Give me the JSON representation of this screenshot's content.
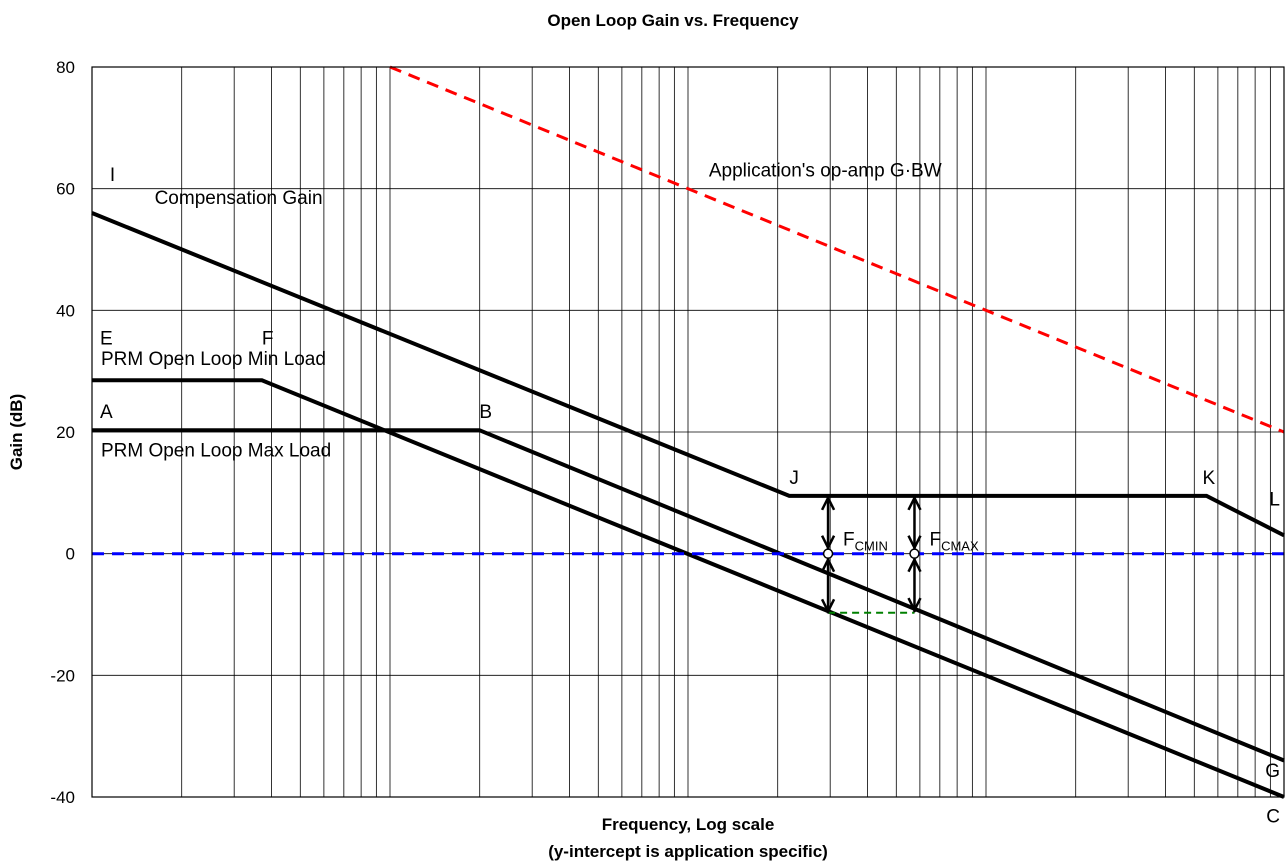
{
  "chart_data": {
    "type": "line",
    "title": "Open Loop Gain vs. Frequency",
    "xlabel": "Frequency, Log scale",
    "xlabel_note": "(y-intercept is application specific)",
    "ylabel": "Gain (dB)",
    "x_scale": "log",
    "x_decades": 4,
    "ylim": [
      -40,
      80
    ],
    "yticks": [
      -40,
      -20,
      0,
      20,
      40,
      60,
      80
    ],
    "grid": true,
    "series": [
      {
        "name": "Compensation Gain",
        "color": "#000000",
        "style": "solid",
        "points": [
          [
            0.0,
            56
          ],
          [
            2.34,
            9.5
          ],
          [
            3.74,
            9.5
          ],
          [
            4.0,
            3
          ]
        ]
      },
      {
        "name": "PRM Open Loop Min Load",
        "color": "#000000",
        "style": "solid",
        "points": [
          [
            0.0,
            28.5
          ],
          [
            0.57,
            28.5
          ],
          [
            4.0,
            -40
          ]
        ]
      },
      {
        "name": "PRM Open Loop Max Load",
        "color": "#000000",
        "style": "solid",
        "points": [
          [
            0.0,
            20.3
          ],
          [
            1.3,
            20.3
          ],
          [
            4.0,
            -34
          ]
        ]
      },
      {
        "name": "Application's op-amp G·BW",
        "color": "#ff0000",
        "style": "dashed",
        "points": [
          [
            1.0,
            80
          ],
          [
            4.0,
            20
          ]
        ]
      },
      {
        "name": "0 dB",
        "color": "#0000ff",
        "style": "dashed",
        "points": [
          [
            0.0,
            0
          ],
          [
            4.0,
            0
          ]
        ]
      },
      {
        "name": "",
        "color": "#008000",
        "style": "dashed",
        "points": [
          [
            2.47,
            -9.7
          ],
          [
            2.76,
            -9.7
          ]
        ]
      }
    ],
    "breakpoints": [
      {
        "label": "A",
        "x": 0.0,
        "y": 20.3
      },
      {
        "label": "B",
        "x": 1.3,
        "y": 20.3
      },
      {
        "label": "C",
        "x": 4.0,
        "y": -34
      },
      {
        "label": "E",
        "x": 0.0,
        "y": 28.5
      },
      {
        "label": "F",
        "x": 0.57,
        "y": 28.5
      },
      {
        "label": "G",
        "x": 4.0,
        "y": -40
      },
      {
        "label": "J",
        "x": 2.34,
        "y": 9.5
      },
      {
        "label": "K",
        "x": 3.74,
        "y": 9.5
      },
      {
        "label": "L",
        "x": 4.0,
        "y": 3
      }
    ],
    "crossover_markers": [
      {
        "x": 2.47,
        "y_top": 9.5,
        "y_bottom": -9.8,
        "label_main": "F",
        "label_sub": "CMIN"
      },
      {
        "x": 2.76,
        "y_top": 9.5,
        "y_bottom": -9.6,
        "label_main": "F",
        "label_sub": "CMAX"
      }
    ],
    "annotations": [
      {
        "text": "Compensation Gain",
        "x": 0.21,
        "y": 57.5
      },
      {
        "text": "PRM Open Loop Min Load",
        "x": 0.03,
        "y": 31
      },
      {
        "text": "PRM Open Loop Max Load",
        "x": 0.03,
        "y": 16
      },
      {
        "text": "Application's op-amp G·BW",
        "x": 2.07,
        "y": 62
      },
      {
        "text": "I",
        "x": 0.06,
        "y": 61.3
      }
    ]
  }
}
